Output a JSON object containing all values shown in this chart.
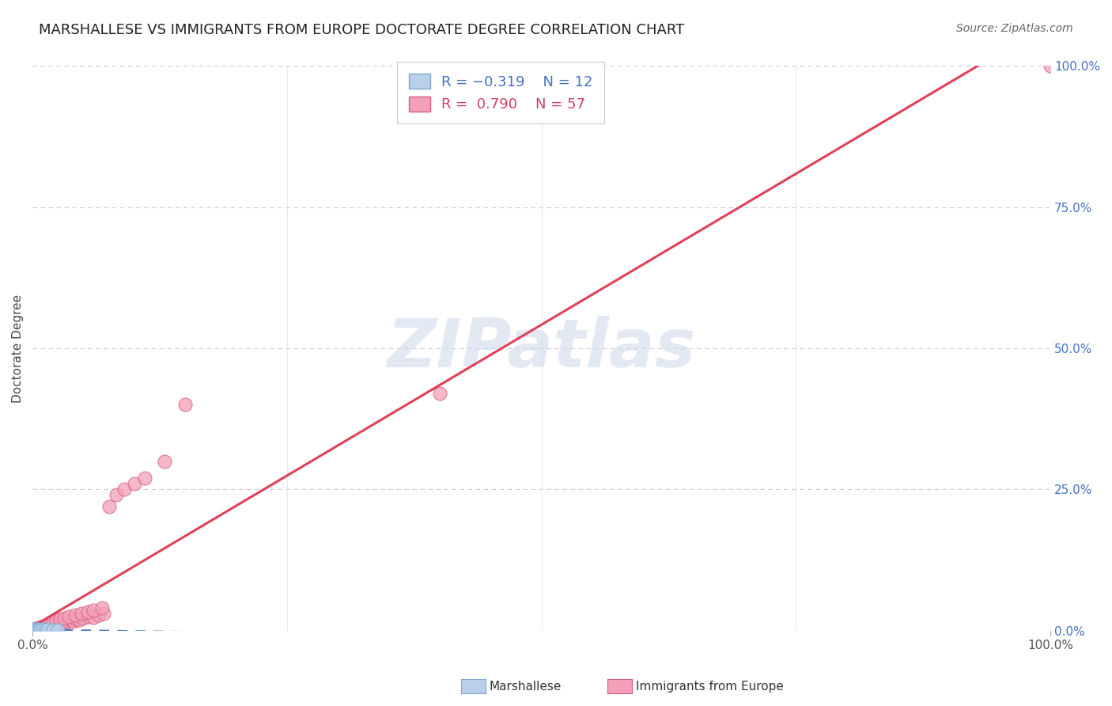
{
  "title": "MARSHALLESE VS IMMIGRANTS FROM EUROPE DOCTORATE DEGREE CORRELATION CHART",
  "source": "Source: ZipAtlas.com",
  "ylabel": "Doctorate Degree",
  "xlim": [
    0.0,
    1.0
  ],
  "ylim": [
    0.0,
    1.0
  ],
  "xtick_positions": [
    0.0,
    1.0
  ],
  "xtick_labels": [
    "0.0%",
    "100.0%"
  ],
  "ytick_positions": [
    0.0,
    0.25,
    0.5,
    0.75,
    1.0
  ],
  "ytick_labels": [
    "0.0%",
    "25.0%",
    "50.0%",
    "75.0%",
    "100.0%"
  ],
  "grid_color": "#cccccc",
  "bg_color": "#ffffff",
  "watermark_text": "ZIPatlas",
  "marshallese": {
    "name": "Marshallese",
    "R": -0.319,
    "N": 12,
    "scatter_color": "#b8d0ea",
    "scatter_edge": "#7fa8cc",
    "line_color": "#4472c4",
    "x": [
      0.001,
      0.002,
      0.003,
      0.004,
      0.005,
      0.006,
      0.008,
      0.01,
      0.012,
      0.015,
      0.02,
      0.025
    ],
    "y": [
      0.002,
      0.001,
      0.003,
      0.0,
      0.002,
      0.001,
      0.003,
      0.002,
      0.001,
      0.002,
      0.001,
      0.001
    ]
  },
  "europe": {
    "name": "Immigrants from Europe",
    "R": 0.79,
    "N": 57,
    "scatter_color": "#f4a0b8",
    "scatter_edge": "#d06080",
    "line_color": "#e0405a",
    "x": [
      0.0005,
      0.001,
      0.002,
      0.003,
      0.004,
      0.005,
      0.006,
      0.007,
      0.008,
      0.009,
      0.01,
      0.011,
      0.012,
      0.013,
      0.014,
      0.015,
      0.016,
      0.018,
      0.02,
      0.022,
      0.024,
      0.026,
      0.028,
      0.03,
      0.032,
      0.035,
      0.038,
      0.04,
      0.043,
      0.046,
      0.05,
      0.055,
      0.06,
      0.065,
      0.07,
      0.008,
      0.011,
      0.015,
      0.019,
      0.023,
      0.027,
      0.031,
      0.036,
      0.042,
      0.048,
      0.054,
      0.06,
      0.068,
      0.075,
      0.082,
      0.09,
      0.1,
      0.11,
      0.13,
      0.15,
      0.4,
      1.0
    ],
    "y": [
      0.001,
      0.002,
      0.003,
      0.002,
      0.004,
      0.003,
      0.005,
      0.004,
      0.006,
      0.005,
      0.007,
      0.006,
      0.008,
      0.007,
      0.009,
      0.008,
      0.01,
      0.009,
      0.01,
      0.012,
      0.013,
      0.012,
      0.014,
      0.015,
      0.014,
      0.016,
      0.018,
      0.017,
      0.02,
      0.019,
      0.022,
      0.025,
      0.024,
      0.028,
      0.03,
      0.003,
      0.007,
      0.01,
      0.014,
      0.018,
      0.02,
      0.022,
      0.025,
      0.028,
      0.03,
      0.033,
      0.036,
      0.04,
      0.22,
      0.24,
      0.25,
      0.26,
      0.27,
      0.3,
      0.4,
      0.42,
      1.0
    ]
  },
  "title_color": "#222222",
  "title_fontsize": 13,
  "source_color": "#666666",
  "source_fontsize": 10,
  "ylabel_fontsize": 11,
  "tick_fontsize": 11,
  "right_tick_color": "#4472c4",
  "legend_blue_color": "#4472c4",
  "legend_pink_color": "#d04060"
}
